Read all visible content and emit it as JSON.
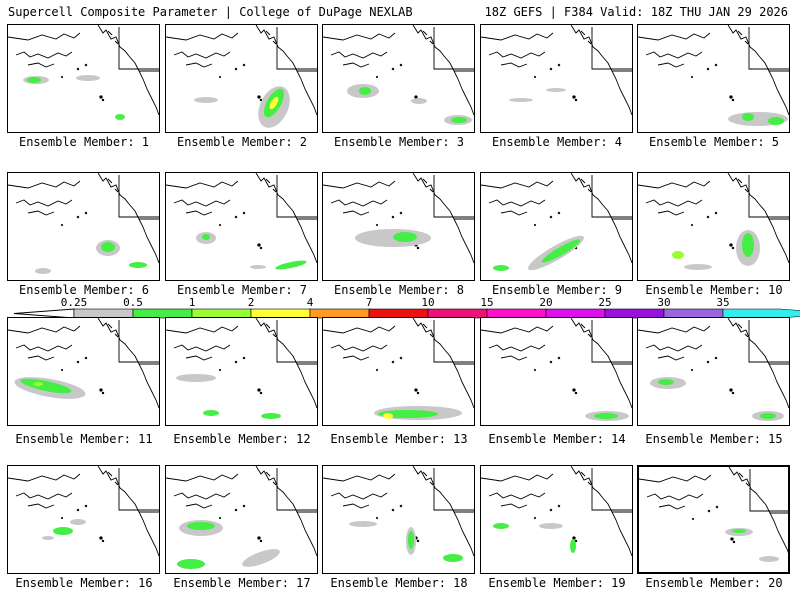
{
  "header": {
    "title": "Supercell Composite Parameter | College of DuPage NEXLAB",
    "run_info": "18Z GEFS | F384 Valid: 18Z THU JAN 29 2026"
  },
  "members": [
    {
      "label": "Ensemble Member: 1"
    },
    {
      "label": "Ensemble Member: 2"
    },
    {
      "label": "Ensemble Member: 3"
    },
    {
      "label": "Ensemble Member: 4"
    },
    {
      "label": "Ensemble Member: 5"
    },
    {
      "label": "Ensemble Member: 6"
    },
    {
      "label": "Ensemble Member: 7"
    },
    {
      "label": "Ensemble Member: 8"
    },
    {
      "label": "Ensemble Member: 9"
    },
    {
      "label": "Ensemble Member: 10"
    },
    {
      "label": "Ensemble Member: 11"
    },
    {
      "label": "Ensemble Member: 12"
    },
    {
      "label": "Ensemble Member: 13"
    },
    {
      "label": "Ensemble Member: 14"
    },
    {
      "label": "Ensemble Member: 15"
    },
    {
      "label": "Ensemble Member: 16"
    },
    {
      "label": "Ensemble Member: 17"
    },
    {
      "label": "Ensemble Member: 18"
    },
    {
      "label": "Ensemble Member: 19"
    },
    {
      "label": "Ensemble Member: 20"
    }
  ],
  "colorbar": {
    "levels": [
      "0.25",
      "0.5",
      "1",
      "2",
      "4",
      "7",
      "10",
      "15",
      "20",
      "25",
      "30",
      "35"
    ],
    "colors": [
      "#c8c8c8",
      "#44ee44",
      "#99ff33",
      "#ffff33",
      "#ff9922",
      "#ee1111",
      "#ee1177",
      "#ff11cc",
      "#dd11ee",
      "#9911dd",
      "#9966dd",
      "#33eeee"
    ]
  }
}
